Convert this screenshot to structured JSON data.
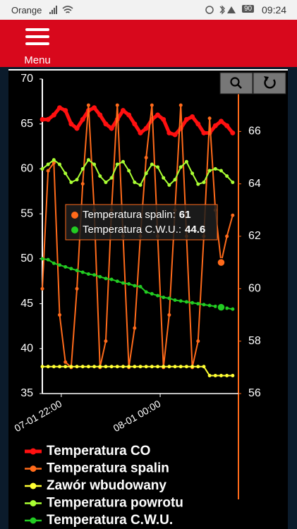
{
  "status_bar": {
    "carrier": "Orange",
    "battery": "90",
    "time": "09:24"
  },
  "header": {
    "menu_label": "Menu"
  },
  "chart_data": {
    "type": "line",
    "x": [
      -23,
      -16,
      -9,
      -2,
      5,
      12,
      19,
      26,
      33,
      40,
      47,
      54,
      61,
      68,
      75,
      82,
      89,
      96,
      103,
      110,
      117,
      124,
      131,
      138,
      145,
      152,
      159,
      166,
      173,
      180,
      187,
      194,
      201,
      208
    ],
    "xlim": [
      -23,
      215
    ],
    "xticks": [
      {
        "value": 0,
        "label": "07-01 22:00"
      },
      {
        "value": 120,
        "label": "08-01 00:00"
      }
    ],
    "ylim": [
      35,
      70
    ],
    "yticks": [
      35,
      40,
      45,
      50,
      55,
      60,
      65,
      70
    ],
    "y2lim": [
      56,
      68
    ],
    "y2ticks": [
      56,
      58,
      60,
      62,
      64,
      66
    ],
    "y2_color": "#ff6a1a",
    "series": [
      {
        "name": "Temperatura CO",
        "color": "#ff1010",
        "values": [
          65.5,
          65.5,
          66,
          66.8,
          66.5,
          65,
          64.5,
          65.5,
          66.5,
          66.8,
          66,
          65,
          64.5,
          65.5,
          66.5,
          66,
          65,
          64,
          64.5,
          65.5,
          66,
          65.5,
          64,
          63.8,
          64.5,
          65.5,
          65.8,
          65,
          64,
          64,
          64.8,
          65.3,
          64.8,
          64
        ]
      },
      {
        "name": "Temperatura spalin",
        "color": "#ff6a1a",
        "axis": "y2",
        "values": [
          60,
          64.5,
          64.8,
          59,
          57.2,
          57,
          60,
          64,
          67,
          63,
          57,
          58,
          63,
          67,
          62,
          57,
          58.5,
          62,
          65,
          67,
          62,
          57,
          59,
          63,
          67,
          62,
          57,
          58,
          62,
          66.5,
          63,
          61,
          62,
          62.8
        ]
      },
      {
        "name": "Zawór wbudowany",
        "color": "#ffff33",
        "values": [
          38,
          38,
          38,
          38,
          38,
          38,
          38,
          38,
          38,
          38,
          38,
          38,
          38,
          38,
          38,
          38,
          38,
          38,
          38,
          38,
          38,
          38,
          38,
          38,
          38,
          38,
          38,
          38,
          38,
          37,
          37,
          37,
          37,
          37
        ]
      },
      {
        "name": "Temperatura powrotu",
        "color": "#aaff33",
        "values": [
          60,
          60.5,
          61,
          60.5,
          59.5,
          58.5,
          58.8,
          60,
          61,
          60.5,
          59.2,
          58.5,
          59,
          60.5,
          60.8,
          59.8,
          58.5,
          58.2,
          59.5,
          60.5,
          60.2,
          59,
          58.2,
          58.8,
          60.2,
          60.8,
          59.5,
          58.3,
          58.5,
          59.8,
          60,
          59.8,
          59.2,
          58.5
        ]
      },
      {
        "name": "Temperatura C.W.U.",
        "color": "#22cc22",
        "values": [
          50,
          49.9,
          49.5,
          49.3,
          49.1,
          48.9,
          48.7,
          48.5,
          48.3,
          48.2,
          48,
          47.8,
          47.7,
          47.5,
          47.3,
          47.2,
          47,
          46.9,
          46.3,
          46.1,
          45.9,
          45.7,
          45.6,
          45.4,
          45.3,
          45.2,
          45.1,
          45,
          44.9,
          44.8,
          44.7,
          44.6,
          44.5,
          44.4
        ]
      }
    ],
    "tooltip": {
      "index": 31,
      "items": [
        {
          "series": 1,
          "label": "Temperatura spalin:",
          "value": 61
        },
        {
          "series": 4,
          "label": "Temperatura C.W.U.:",
          "value": 44.6
        }
      ]
    }
  }
}
